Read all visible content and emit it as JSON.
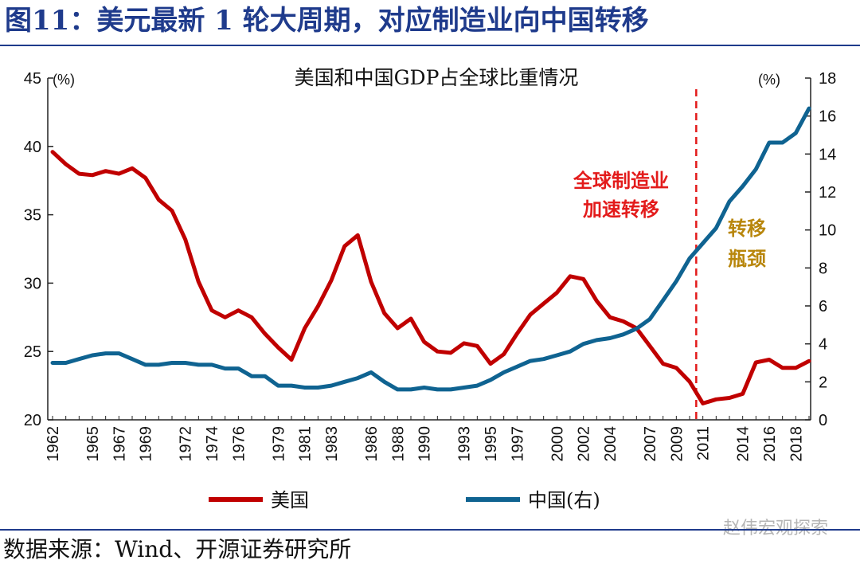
{
  "figure": {
    "title": "图11：美元最新 1 轮大周期，对应制造业向中国转移",
    "source": "数据来源：Wind、开源证券研究所",
    "watermark": "赵伟宏观探索"
  },
  "colors": {
    "us": "#c00000",
    "china": "#0f6391",
    "annotation_red": "#e31b1b",
    "annotation_gold": "#b8860b"
  },
  "chart_data": {
    "type": "line",
    "title": "美国和中国GDP占全球比重情况",
    "x": [
      1962,
      1963,
      1964,
      1965,
      1966,
      1967,
      1968,
      1969,
      1970,
      1971,
      1972,
      1973,
      1974,
      1975,
      1976,
      1977,
      1978,
      1979,
      1980,
      1981,
      1982,
      1983,
      1984,
      1985,
      1986,
      1987,
      1988,
      1989,
      1990,
      1991,
      1992,
      1993,
      1994,
      1995,
      1996,
      1997,
      1998,
      1999,
      2000,
      2001,
      2002,
      2003,
      2004,
      2005,
      2006,
      2007,
      2008,
      2009,
      2010,
      2011,
      2012,
      2013,
      2014,
      2015,
      2016,
      2017,
      2018,
      2019
    ],
    "x_tick_labels": [
      "1962",
      "1965",
      "1967",
      "1969",
      "1972",
      "1974",
      "1976",
      "1979",
      "1981",
      "1983",
      "1986",
      "1988",
      "1990",
      "1993",
      "1995",
      "1997",
      "2000",
      "2002",
      "2004",
      "2007",
      "2009",
      "2011",
      "2014",
      "2016",
      "2018"
    ],
    "series": [
      {
        "name": "美国",
        "axis": "left",
        "values": [
          39.6,
          38.7,
          38.0,
          37.9,
          38.2,
          38.0,
          38.4,
          37.7,
          36.1,
          35.3,
          33.2,
          30.1,
          28.0,
          27.5,
          28.0,
          27.5,
          26.3,
          25.3,
          24.4,
          26.7,
          28.3,
          30.2,
          32.7,
          33.5,
          30.1,
          27.8,
          26.7,
          27.4,
          25.7,
          25.0,
          24.9,
          25.6,
          25.4,
          24.1,
          24.8,
          26.3,
          27.7,
          28.5,
          29.3,
          30.5,
          30.3,
          28.7,
          27.5,
          27.2,
          26.7,
          25.4,
          24.1,
          23.8,
          22.8,
          21.2,
          21.5,
          21.6,
          21.9,
          24.2,
          24.4,
          23.8,
          23.8,
          24.3
        ]
      },
      {
        "name": "中国(右)",
        "axis": "right",
        "values": [
          3.0,
          3.0,
          3.2,
          3.4,
          3.5,
          3.5,
          3.2,
          2.9,
          2.9,
          3.0,
          3.0,
          2.9,
          2.9,
          2.7,
          2.7,
          2.3,
          2.3,
          1.8,
          1.8,
          1.7,
          1.7,
          1.8,
          2.0,
          2.2,
          2.5,
          2.0,
          1.6,
          1.6,
          1.7,
          1.6,
          1.6,
          1.7,
          1.8,
          2.1,
          2.5,
          2.8,
          3.1,
          3.2,
          3.4,
          3.6,
          4.0,
          4.2,
          4.3,
          4.5,
          4.8,
          5.3,
          6.3,
          7.3,
          8.5,
          9.3,
          10.1,
          11.5,
          12.3,
          13.2,
          14.6,
          14.6,
          15.1,
          16.4
        ]
      }
    ],
    "y_left": {
      "unit": "(%)",
      "min": 20,
      "max": 45,
      "ticks": [
        20,
        25,
        30,
        35,
        40,
        45
      ]
    },
    "y_right": {
      "unit": "(%)",
      "min": 0,
      "max": 18,
      "ticks": [
        0,
        2,
        4,
        6,
        8,
        10,
        12,
        14,
        16,
        18
      ]
    },
    "divider_year": 2010.5,
    "annotations": {
      "left_line1": "全球制造业",
      "left_line2": "加速转移",
      "right_line1": "转移",
      "right_line2": "瓶颈"
    },
    "legend": {
      "position": "bottom",
      "us_label": "美国",
      "china_label": "中国(右)"
    },
    "grid": false
  }
}
